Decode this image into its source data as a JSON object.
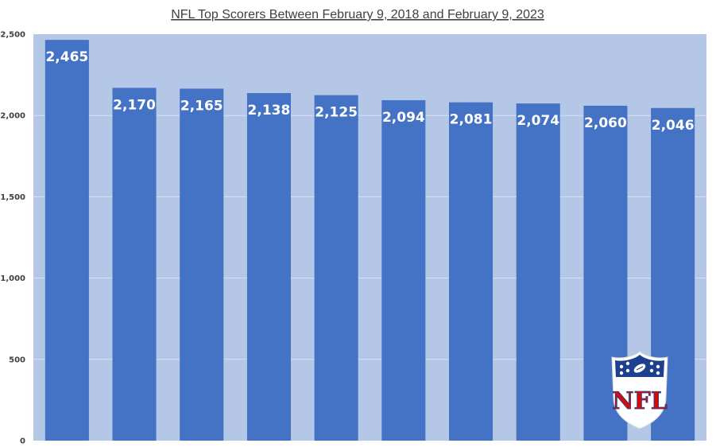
{
  "chart_data": {
    "type": "bar",
    "title": "NFL Top Scorers Between February 9, 2018 and February 9, 2023",
    "xlabel": "",
    "ylabel": "",
    "categories": [
      "",
      "",
      "",
      "",
      "",
      "",
      "",
      "",
      "",
      ""
    ],
    "values": [
      2465,
      2170,
      2165,
      2138,
      2125,
      2094,
      2081,
      2074,
      2060,
      2046
    ],
    "data_labels": [
      "2,465",
      "2,170",
      "2,165",
      "2,138",
      "2,125",
      "2,094",
      "2,081",
      "2,074",
      "2,060",
      "2,046"
    ],
    "ylim": [
      0,
      2500
    ],
    "y_ticks": [
      0,
      500,
      1000,
      1500,
      2000,
      2500
    ],
    "y_tick_labels": [
      "0",
      "500",
      "1,000",
      "1,500",
      "2,000",
      "2,500"
    ],
    "grid": true,
    "legend": "none",
    "colors": {
      "bar": "#4472c4",
      "plot_background": "#b4c7e7",
      "gridline": "#d9e1f2",
      "data_label": "#ffffff",
      "text": "#404040"
    },
    "logo": {
      "icon": "nfl-shield-logo-icon",
      "text": "NFL"
    }
  }
}
